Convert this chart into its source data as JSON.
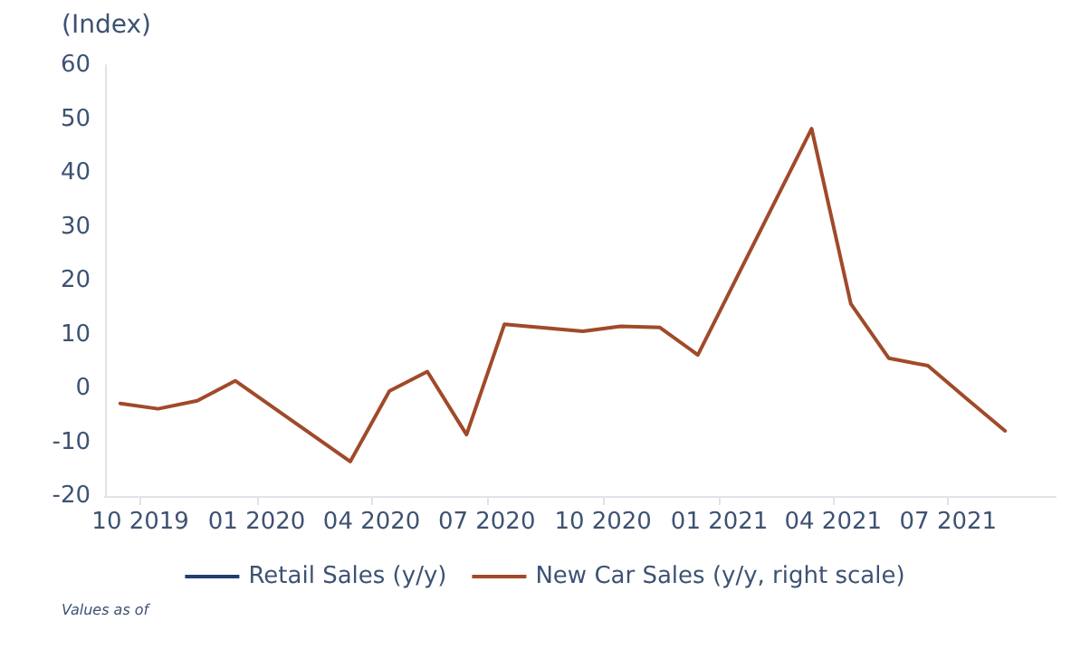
{
  "chart_data": {
    "type": "line",
    "ylabel": "(Index)",
    "annotations": [
      "Values as of"
    ],
    "x": [
      "2019-09-15",
      "2019-10-15",
      "2019-11-15",
      "2019-12-15",
      "2020-03-15",
      "2020-04-15",
      "2020-05-15",
      "2020-06-15",
      "2020-07-15",
      "2020-09-15",
      "2020-10-15",
      "2020-11-15",
      "2020-12-15",
      "2021-03-15",
      "2021-04-15",
      "2021-05-15",
      "2021-06-15",
      "2021-07-15",
      "2021-08-15"
    ],
    "series": [
      {
        "name": "Retail Sales (y/y)",
        "color": "#1f3f6e",
        "values": [
          null,
          null,
          null,
          null,
          null,
          null,
          null,
          null,
          null,
          null,
          null,
          null,
          null,
          null,
          null,
          null,
          null,
          null,
          null
        ]
      },
      {
        "name": "New Car Sales (y/y, right scale)",
        "color": "#a04a2a",
        "values": [
          -2.8,
          -3.8,
          -2.3,
          1.4,
          -13.6,
          -0.5,
          3.1,
          -8.6,
          11.9,
          10.6,
          11.5,
          11.3,
          6.2,
          48.2,
          15.7,
          5.6,
          4.2,
          -1.8,
          -7.9
        ]
      }
    ],
    "xlim": [
      "2019-09-03",
      "2021-09-24"
    ],
    "xticks": [
      {
        "value": "2019-10",
        "label": "10 2019"
      },
      {
        "value": "2020-01",
        "label": "01 2020"
      },
      {
        "value": "2020-04",
        "label": "04 2020"
      },
      {
        "value": "2020-07",
        "label": "07 2020"
      },
      {
        "value": "2020-10",
        "label": "10 2020"
      },
      {
        "value": "2021-01",
        "label": "01 2021"
      },
      {
        "value": "2021-04",
        "label": "04 2021"
      },
      {
        "value": "2021-07",
        "label": "07 2021"
      }
    ],
    "ylim": [
      -20,
      60
    ],
    "yticks": [
      -20,
      -10,
      0,
      10,
      20,
      30,
      40,
      50,
      60
    ],
    "grid": false,
    "legend": "bottom",
    "marker": "none",
    "line_style": "solid"
  }
}
